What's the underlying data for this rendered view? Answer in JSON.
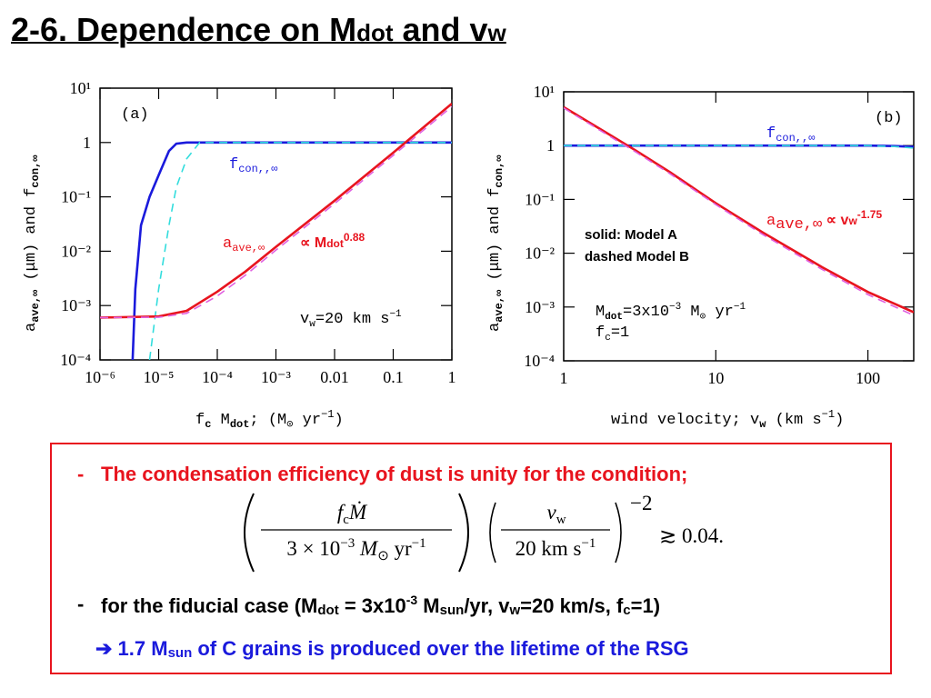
{
  "title": [
    "2-6. Dependence on M",
    "dot",
    " and v",
    "w"
  ],
  "chart_data": [
    {
      "type": "line",
      "xlog": true,
      "ylog": true,
      "xlim": [
        1e-06,
        1
      ],
      "ylim": [
        0.0001,
        10
      ],
      "xticks": [
        {
          "value": 1e-06,
          "label": "10⁻⁶"
        },
        {
          "value": 1e-05,
          "label": "10⁻⁵"
        },
        {
          "value": 0.0001,
          "label": "10⁻⁴"
        },
        {
          "value": 0.001,
          "label": "10⁻³"
        },
        0.01,
        0.1,
        1
      ],
      "yticks": [
        {
          "value": 0.0001,
          "label": "10⁻⁴"
        },
        {
          "value": 0.001,
          "label": "10⁻³"
        },
        {
          "value": 0.01,
          "label": "10⁻²"
        },
        {
          "value": 0.1,
          "label": "10⁻¹"
        },
        1,
        {
          "value": 10,
          "label": "10¹"
        }
      ],
      "xlabel": [
        "f",
        "c",
        " M",
        "dot",
        "; (M",
        "⊙",
        " yr",
        "−1",
        ")"
      ],
      "ylabel": [
        "a",
        "ave,∞",
        " (μm) and f",
        "con,∞"
      ],
      "series": [
        {
          "color": "#1a1adc",
          "dashed": false,
          "x": [
            3.6e-06,
            4e-06,
            5e-06,
            7e-06,
            1e-05,
            1.5e-05,
            2e-05,
            3e-05,
            1
          ],
          "values": [
            0.0001,
            0.002,
            0.03,
            0.1,
            0.25,
            0.7,
            0.95,
            1,
            1
          ]
        },
        {
          "color": "#33dddd",
          "dashed": true,
          "x": [
            7e-06,
            1e-05,
            1.5e-05,
            2e-05,
            3e-05,
            5e-05,
            1
          ],
          "values": [
            0.0001,
            0.002,
            0.03,
            0.15,
            0.5,
            1,
            1
          ]
        },
        {
          "color": "#e8141e",
          "dashed": false,
          "x": [
            1e-06,
            1e-05,
            3e-05,
            0.0001,
            0.0003,
            0.001,
            0.01,
            0.1,
            1
          ],
          "values": [
            0.0006,
            0.00063,
            0.0008,
            0.0018,
            0.0042,
            0.012,
            0.085,
            0.65,
            5.2
          ]
        },
        {
          "color": "#e060e0",
          "dashed": true,
          "x": [
            1e-06,
            1e-05,
            3e-05,
            0.0001,
            0.0003,
            0.001,
            0.01,
            0.1,
            1
          ],
          "values": [
            0.0006,
            0.00061,
            0.00072,
            0.0015,
            0.0036,
            0.0105,
            0.075,
            0.58,
            4.6
          ]
        }
      ],
      "annotations": [
        [
          "(a)"
        ],
        [
          "f",
          "con,,∞"
        ],
        [
          "a",
          "ave,∞"
        ],
        [
          "∝ M",
          "dot",
          "0.88"
        ],
        [
          "v",
          "w",
          "=20 km s",
          "−1"
        ]
      ]
    },
    {
      "type": "line",
      "xlog": true,
      "ylog": true,
      "xlim": [
        1,
        200
      ],
      "ylim": [
        0.0001,
        10
      ],
      "xticks": [
        1,
        10,
        100
      ],
      "yticks": [
        {
          "value": 0.0001,
          "label": "10⁻⁴"
        },
        {
          "value": 0.001,
          "label": "10⁻³"
        },
        {
          "value": 0.01,
          "label": "10⁻²"
        },
        {
          "value": 0.1,
          "label": "10⁻¹"
        },
        1,
        {
          "value": 10,
          "label": "10¹"
        }
      ],
      "xlabel": [
        "wind velocity; v",
        "w",
        " (km s",
        "−1",
        ")"
      ],
      "ylabel": [
        "a",
        "ave,∞",
        " (μm) and f",
        "con,∞"
      ],
      "series": [
        {
          "color": "#1a1adc",
          "dashed": false,
          "x": [
            1,
            10,
            100,
            150,
            200
          ],
          "values": [
            1,
            1,
            1,
            0.98,
            0.95
          ]
        },
        {
          "color": "#33dddd",
          "dashed": true,
          "x": [
            1,
            10,
            100,
            150,
            200
          ],
          "values": [
            1,
            1,
            1,
            0.96,
            0.9
          ]
        },
        {
          "color": "#e8141e",
          "dashed": false,
          "x": [
            1,
            2,
            3,
            5,
            10,
            20,
            50,
            100,
            200
          ],
          "values": [
            5.2,
            1.6,
            0.8,
            0.32,
            0.085,
            0.025,
            0.0055,
            0.0019,
            0.0008
          ]
        },
        {
          "color": "#e060e0",
          "dashed": true,
          "x": [
            1,
            2,
            3,
            5,
            10,
            20,
            50,
            100,
            200
          ],
          "values": [
            5,
            1.5,
            0.75,
            0.3,
            0.08,
            0.023,
            0.005,
            0.0017,
            0.0007
          ]
        }
      ],
      "annotations": [
        [
          "(b)"
        ],
        [
          "f",
          "con,,∞"
        ],
        [
          "a",
          "ave,∞",
          " ∝ v",
          "w",
          "-1.75"
        ],
        [
          "solid: Model A"
        ],
        [
          "dashed Model B"
        ],
        [
          "M",
          "dot",
          "=3x10",
          "−3",
          " M",
          "⊙",
          " yr",
          "−1"
        ],
        [
          "f",
          "c",
          "=1"
        ]
      ]
    }
  ],
  "text_box": {
    "condition": "The condensation efficiency of dust is unity for the condition;",
    "formula": {
      "num1": [
        "f",
        "c",
        "Ṁ"
      ],
      "den1": [
        "3 × 10",
        "−3",
        " M",
        "⊙",
        " yr",
        "−1"
      ],
      "num2": [
        "v",
        "w"
      ],
      "den2": [
        "20 km s",
        "−1"
      ],
      "exponent": "−2",
      "rhs": "≳ 0.04."
    },
    "fiducial": [
      "for the fiducial case (M",
      "dot",
      " = 3x10",
      "-3",
      " M",
      "sun",
      "/yr, v",
      "w",
      "=20 km/s, f",
      "c",
      "=1)"
    ],
    "result": [
      "➔ 1.7 M",
      "sun",
      " of C grains is produced over the lifetime of the RSG"
    ]
  }
}
